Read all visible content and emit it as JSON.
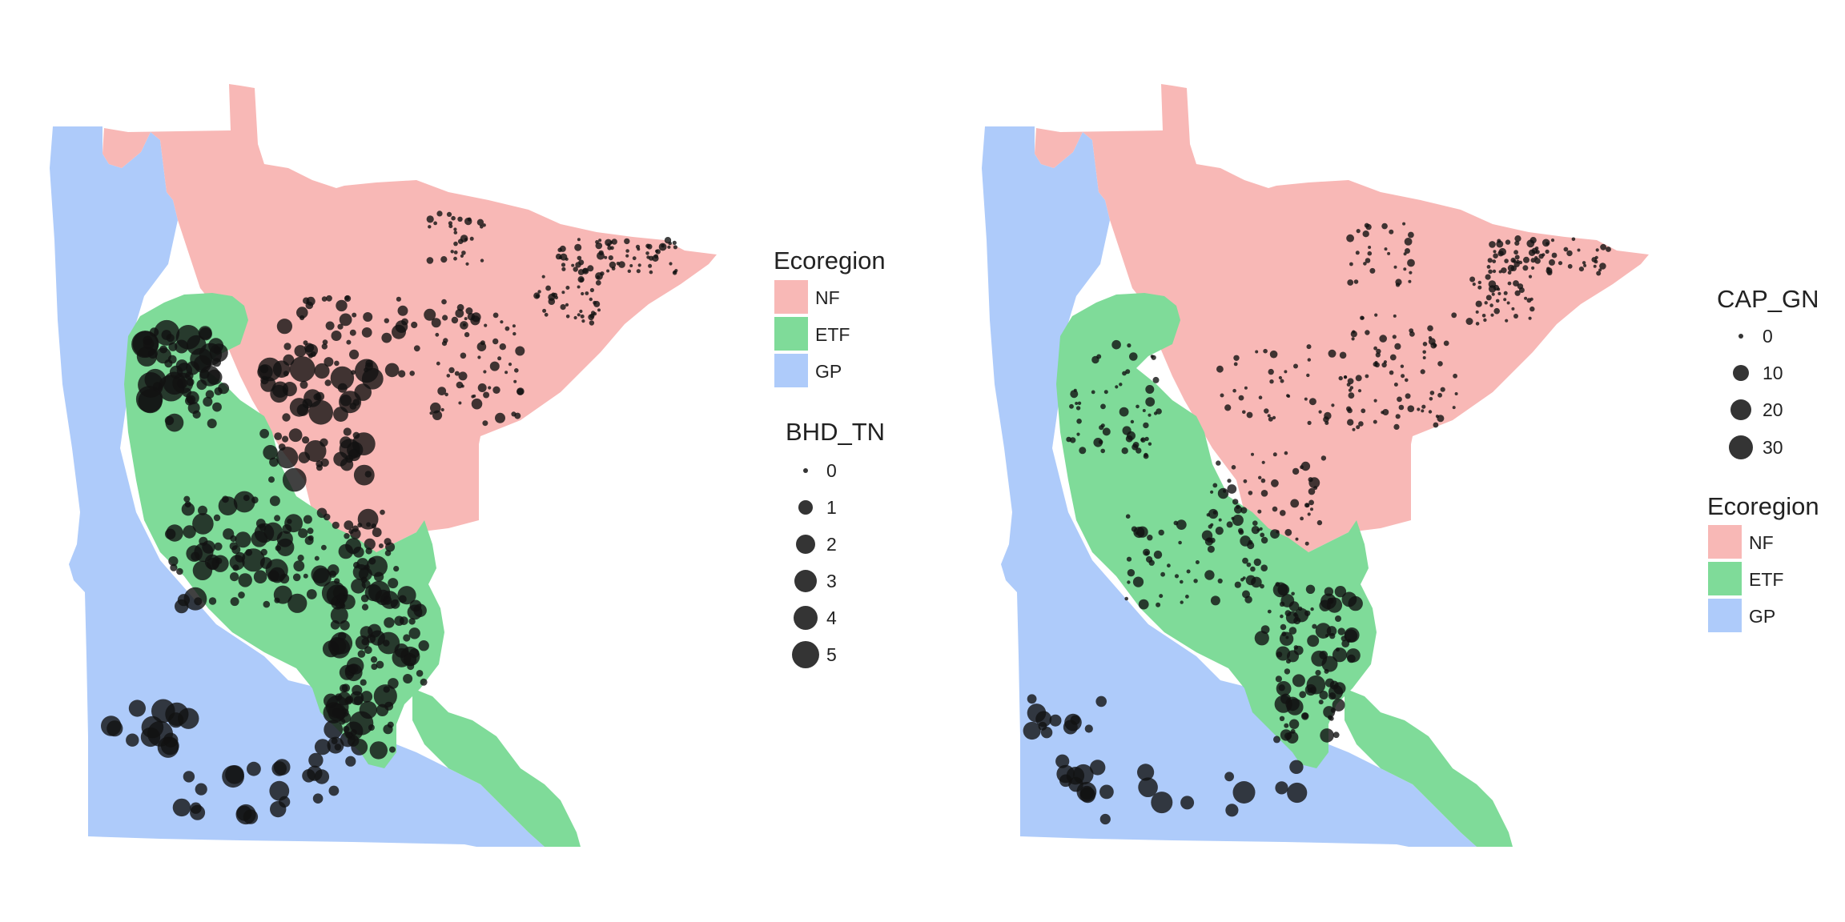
{
  "colors": {
    "NF": "#f8b8b6",
    "ETF": "#7fdb99",
    "GP": "#aecbfa",
    "point": "#111111"
  },
  "panels": [
    {
      "id": "left",
      "variable": "BHD_TN",
      "ecoregion_legend": {
        "title": "Ecoregion",
        "items": [
          "NF",
          "ETF",
          "GP"
        ]
      },
      "size_legend": {
        "title": "BHD_TN",
        "values": [
          "0",
          "1",
          "2",
          "3",
          "4",
          "5"
        ]
      },
      "legend_order": "ecoregion-first"
    },
    {
      "id": "right",
      "variable": "CAP_GN",
      "ecoregion_legend": {
        "title": "Ecoregion",
        "items": [
          "NF",
          "ETF",
          "GP"
        ]
      },
      "size_legend": {
        "title": "CAP_GN",
        "values": [
          "0",
          "10",
          "20",
          "30"
        ]
      },
      "legend_order": "size-first"
    }
  ]
}
